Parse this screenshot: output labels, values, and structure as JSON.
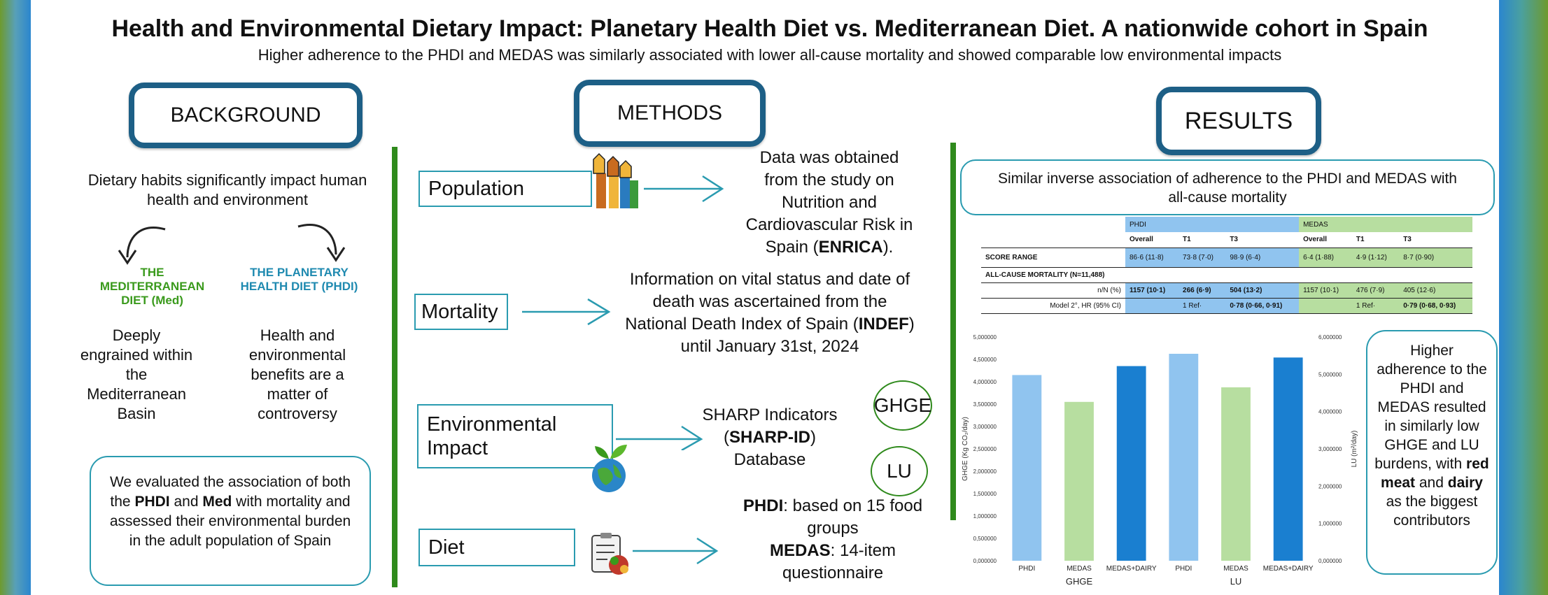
{
  "title": "Health and Environmental Dietary Impact: Planetary Health Diet vs. Mediterranean Diet. A nationwide cohort in Spain",
  "subtitle": "Higher adherence to the PHDI and MEDAS was similarly associated with lower all-cause mortality and showed comparable low environmental impacts",
  "colors": {
    "frame": "#1d5f86",
    "teal": "#2a9bb0",
    "green": "#2f8a1c",
    "phdi_blue": "#90c4ef",
    "medas_green": "#b7dea0",
    "dark_blue": "#1a7fd0"
  },
  "background": {
    "header": "BACKGROUND",
    "intro": "Dietary habits significantly impact human health and environment",
    "med_name": "THE MEDITERRANEAN DIET (Med)",
    "phdi_name": "THE PLANETARY HEALTH DIET (PHDI)",
    "med_desc": "Deeply engrained within the Mediterranean Basin",
    "phdi_desc": "Health and environmental benefits are a matter of controversy",
    "aim_pre": "We evaluated the association of both the ",
    "aim_phdi": "PHDI",
    "aim_and": " and ",
    "aim_med": "Med",
    "aim_post": " with mortality and assessed their environmental burden in the adult population of Spain"
  },
  "methods": {
    "header": "METHODS",
    "population": {
      "label": "Population",
      "desc_pre": "Data was obtained from the study on Nutrition and Cardiovascular Risk in Spain (",
      "desc_bold": "ENRICA",
      "desc_post": ")."
    },
    "mortality": {
      "label": "Mortality",
      "desc_pre": "Information on vital status and date of death was ascertained from the National Death Index of Spain (",
      "desc_bold": "INDEF",
      "desc_post": ") until January 31st, 2024"
    },
    "environment": {
      "label": "Environmental Impact",
      "desc_pre": "SHARP Indicators (",
      "desc_bold": "SHARP-ID",
      "desc_post": ") Database",
      "ghge": "GHGE",
      "lu": "LU"
    },
    "diet": {
      "label": "Diet",
      "phdi_bold": "PHDI",
      "phdi_rest": ": based on 15 food groups",
      "medas_bold": "MEDAS",
      "medas_rest": ": 14-item questionnaire"
    }
  },
  "results": {
    "header": "RESULTS",
    "finding": "Similar inverse association of adherence to the PHDI and MEDAS with all-cause mortality",
    "table": {
      "group_phdi": "PHDI",
      "group_medas": "MEDAS",
      "col_overall": "Overall",
      "col_t1": "T1",
      "col_t3": "T3",
      "score_label": "SCORE RANGE",
      "score_phdi": [
        "86·6 (11·8)",
        "73·8 (7·0)",
        "98·9 (6·4)"
      ],
      "score_medas": [
        "6·4 (1·88)",
        "4·9 (1·12)",
        "8·7 (0·90)"
      ],
      "mort_label": "ALL-CAUSE MORTALITY (N=11,488)",
      "nn_label": "n/N (%)",
      "nn_phdi": [
        "1157 (10·1)",
        "266 (6·9)",
        "504 (13·2)"
      ],
      "nn_medas": [
        "1157 (10·1)",
        "476 (7·9)",
        "405 (12·6)"
      ],
      "hr_label": "Model 2°, HR (95% CI)",
      "hr_phdi": [
        "",
        "1 Ref·",
        "0·78 (0·66, 0·91)"
      ],
      "hr_medas": [
        "",
        "1 Ref·",
        "0·79 (0·68, 0·93)"
      ]
    },
    "summary_l1": "Higher adherence to the PHDI and MEDAS resulted in similarly low GHGE and LU burdens, with ",
    "summary_b1": "red meat",
    "summary_l2": " and ",
    "summary_b2": "dairy",
    "summary_l3": " as the biggest contributors"
  },
  "chart_data": {
    "type": "bar",
    "left_axis": {
      "label": "GHGE (Kg CO₂/day)",
      "ylim": [
        0,
        5000000
      ],
      "ticks": [
        "0,000000",
        "0,500000",
        "1,000000",
        "1,500000",
        "2,000000",
        "2,500000",
        "3,000000",
        "3,500000",
        "4,000000",
        "4,500000",
        "5,000000"
      ]
    },
    "right_axis": {
      "label": "LU (m²/day)",
      "ylim": [
        0,
        6000000
      ],
      "ticks": [
        "0,000000",
        "1,000000",
        "2,000000",
        "3,000000",
        "4,000000",
        "5,000000",
        "6,000000"
      ]
    },
    "groups": [
      {
        "name": "GHGE",
        "axis": "left",
        "categories": [
          "PHDI",
          "MEDAS",
          "MEDAS+DAIRY"
        ],
        "values": [
          4.15,
          3.55,
          4.35
        ],
        "colors": [
          "#90c4ef",
          "#b7dea0",
          "#1a7fd0"
        ]
      },
      {
        "name": "LU",
        "axis": "right",
        "categories": [
          "PHDI",
          "MEDAS",
          "MEDAS+DAIRY"
        ],
        "values": [
          5.55,
          4.65,
          5.45
        ],
        "colors": [
          "#90c4ef",
          "#b7dea0",
          "#1a7fd0"
        ]
      }
    ]
  }
}
